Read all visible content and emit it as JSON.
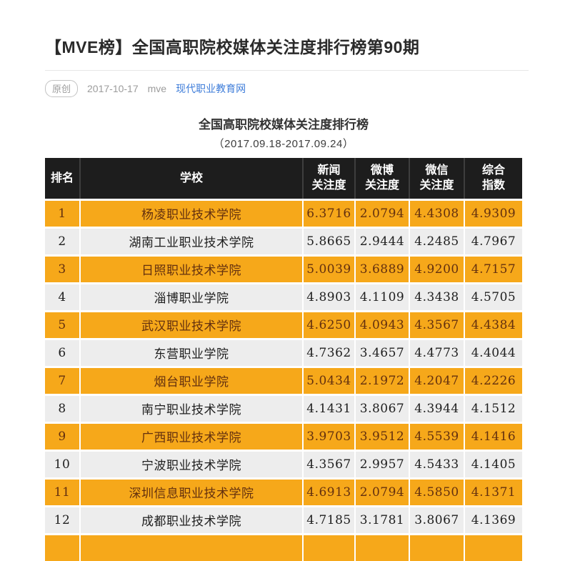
{
  "article": {
    "title": "【MVE榜】全国高职院校媒体关注度排行榜第90期",
    "badge": "原创",
    "date": "2017-10-17",
    "author": "mve",
    "source_link": "现代职业教育网"
  },
  "ranking": {
    "title": "全国高职院校媒体关注度排行榜",
    "period": "（2017.09.18-2017.09.24）",
    "columns": [
      {
        "line1": "排名",
        "line2": ""
      },
      {
        "line1": "学校",
        "line2": ""
      },
      {
        "line1": "新闻",
        "line2": "关注度"
      },
      {
        "line1": "微博",
        "line2": "关注度"
      },
      {
        "line1": "微信",
        "line2": "关注度"
      },
      {
        "line1": "综合",
        "line2": "指数"
      }
    ],
    "rows": [
      {
        "rank": "1",
        "school": "杨凌职业技术学院",
        "news": "6.3716",
        "weibo": "2.0794",
        "wechat": "4.4308",
        "index": "4.9309"
      },
      {
        "rank": "2",
        "school": "湖南工业职业技术学院",
        "news": "5.8665",
        "weibo": "2.9444",
        "wechat": "4.2485",
        "index": "4.7967"
      },
      {
        "rank": "3",
        "school": "日照职业技术学院",
        "news": "5.0039",
        "weibo": "3.6889",
        "wechat": "4.9200",
        "index": "4.7157"
      },
      {
        "rank": "4",
        "school": "淄博职业学院",
        "news": "4.8903",
        "weibo": "4.1109",
        "wechat": "4.3438",
        "index": "4.5705"
      },
      {
        "rank": "5",
        "school": "武汉职业技术学院",
        "news": "4.6250",
        "weibo": "4.0943",
        "wechat": "4.3567",
        "index": "4.4384"
      },
      {
        "rank": "6",
        "school": "东营职业学院",
        "news": "4.7362",
        "weibo": "3.4657",
        "wechat": "4.4773",
        "index": "4.4044"
      },
      {
        "rank": "7",
        "school": "烟台职业学院",
        "news": "5.0434",
        "weibo": "2.1972",
        "wechat": "4.2047",
        "index": "4.2226"
      },
      {
        "rank": "8",
        "school": "南宁职业技术学院",
        "news": "4.1431",
        "weibo": "3.8067",
        "wechat": "4.3944",
        "index": "4.1512"
      },
      {
        "rank": "9",
        "school": "广西职业技术学院",
        "news": "3.9703",
        "weibo": "3.9512",
        "wechat": "4.5539",
        "index": "4.1416"
      },
      {
        "rank": "10",
        "school": "宁波职业技术学院",
        "news": "4.3567",
        "weibo": "2.9957",
        "wechat": "4.5433",
        "index": "4.1405"
      },
      {
        "rank": "11",
        "school": "深圳信息职业技术学院",
        "news": "4.6913",
        "weibo": "2.0794",
        "wechat": "4.5850",
        "index": "4.1371"
      },
      {
        "rank": "12",
        "school": "成都职业技术学院",
        "news": "4.7185",
        "weibo": "3.1781",
        "wechat": "3.8067",
        "index": "4.1369"
      }
    ]
  },
  "colors": {
    "header_bg": "#1d1d1d",
    "row_yellow": "#f6a81a",
    "row_gray": "#ededed",
    "yellow_row_text": "#63300f",
    "link_blue": "#3d7cd9"
  }
}
